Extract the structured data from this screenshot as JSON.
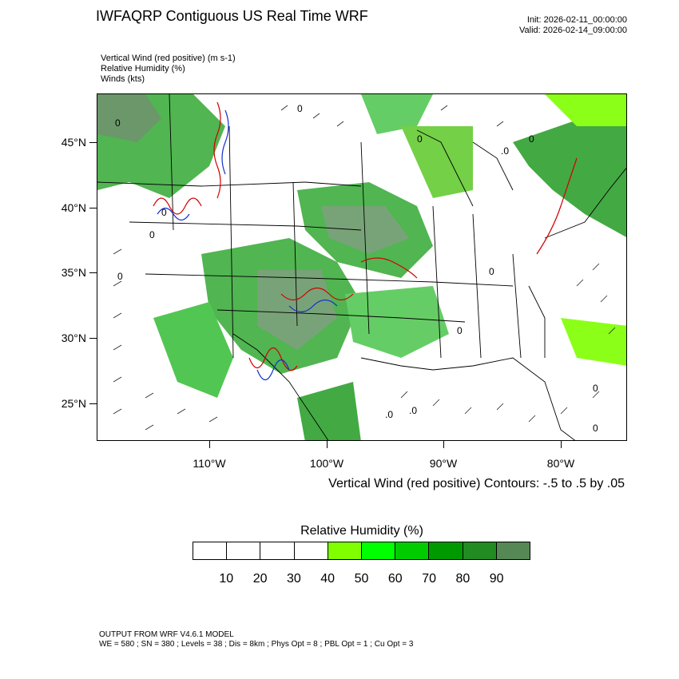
{
  "header": {
    "title": "IWFAQRP Contiguous US Real Time WRF",
    "init": "Init: 2026-02-11_00:00:00",
    "valid": "Valid: 2026-02-14_09:00:00"
  },
  "fields": [
    "Vertical Wind (red positive)   (m s-1)",
    "Relative Humidity   (%)",
    "Winds   (kts)"
  ],
  "map": {
    "lat_labels": [
      "45°N",
      "40°N",
      "35°N",
      "30°N",
      "25°N"
    ],
    "lon_labels": [
      "110°W",
      "100°W",
      "90°W",
      "80°W"
    ],
    "contour_marker": "0",
    "contour_marker_decimal": ".0",
    "colors": {
      "border": "#000000",
      "updraft": "#d00000",
      "downdraft": "#1030d0",
      "barb": "#222222"
    }
  },
  "contour_note": "Vertical Wind (red positive) Contours: -.5 to .5 by .05",
  "colorbar": {
    "title": "Relative Humidity  (%)",
    "colors": [
      "#ffffff",
      "#ffffff",
      "#ffffff",
      "#ffffff",
      "#80ff00",
      "#00ff00",
      "#00cc00",
      "#009900",
      "#228b22",
      "#558855"
    ],
    "ticks": [
      "10",
      "20",
      "30",
      "40",
      "50",
      "60",
      "70",
      "80",
      "90"
    ]
  },
  "footer": {
    "model": "OUTPUT FROM WRF V4.6.1 MODEL",
    "params": "WE = 580 ; SN = 380 ; Levels = 38 ; Dis = 8km ; Phys Opt = 8 ; PBL Opt = 1 ; Cu Opt = 3"
  }
}
